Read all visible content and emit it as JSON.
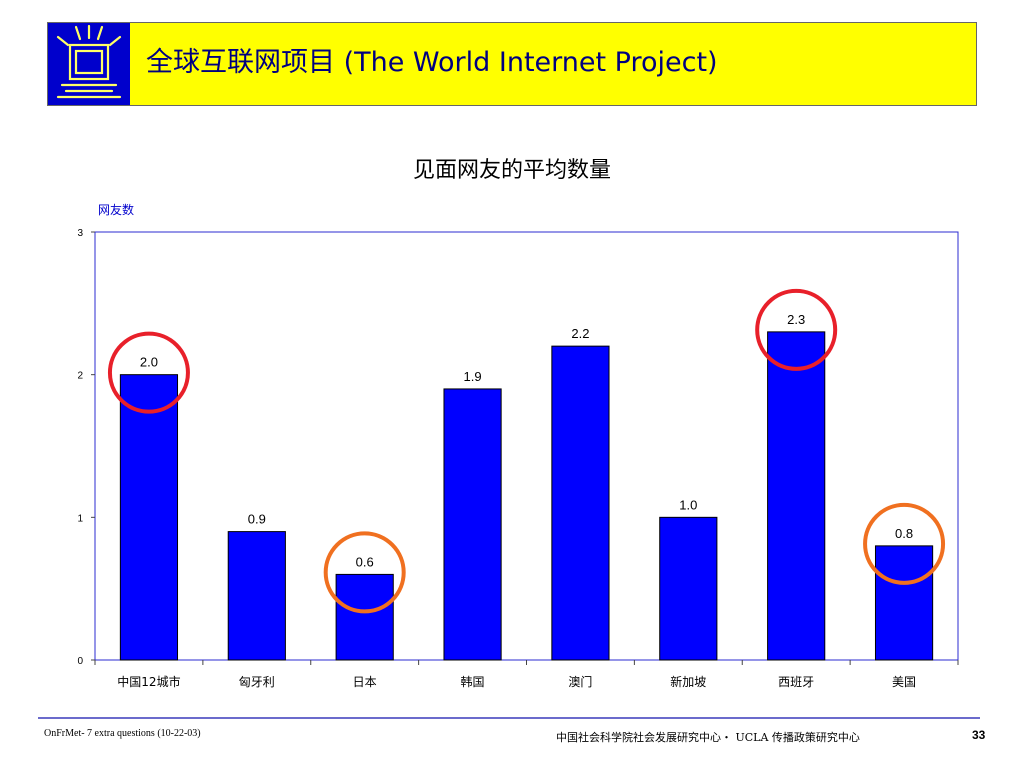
{
  "header": {
    "title": "全球互联网项目 (The World Internet Project)",
    "logo_icon": "tv-screen-logo-icon",
    "background_color": "#ffff00",
    "logo_color": "#0000cc"
  },
  "chart_data": {
    "type": "bar",
    "title": "见面网友的平均数量",
    "ylabel": "网友数",
    "xlabel": "",
    "categories": [
      "中国12城市",
      "匈牙利",
      "日本",
      "韩国",
      "澳门",
      "新加坡",
      "西班牙",
      "美国"
    ],
    "values": [
      2.0,
      0.9,
      0.6,
      1.9,
      2.2,
      1.0,
      2.3,
      0.8
    ],
    "value_labels": [
      "2.0",
      "0.9",
      "0.6",
      "1.9",
      "2.2",
      "1.0",
      "2.3",
      "0.8"
    ],
    "ylim": [
      0,
      3
    ],
    "yticks": [
      0,
      1,
      2,
      3
    ],
    "grid": false,
    "bar_color": "#0000ff",
    "annotations": [
      {
        "category": "中国12城市",
        "shape": "circle",
        "color": "#e8202a"
      },
      {
        "category": "日本",
        "shape": "circle",
        "color": "#f07020"
      },
      {
        "category": "西班牙",
        "shape": "circle",
        "color": "#e8202a"
      },
      {
        "category": "美国",
        "shape": "circle",
        "color": "#f07020"
      }
    ]
  },
  "footer": {
    "left": "OnFrMet- 7 extra questions (10-22-03)",
    "middle": "中国社会科学院社会发展研究中心・ UCLA 传播政策研究中心",
    "page": "33"
  }
}
